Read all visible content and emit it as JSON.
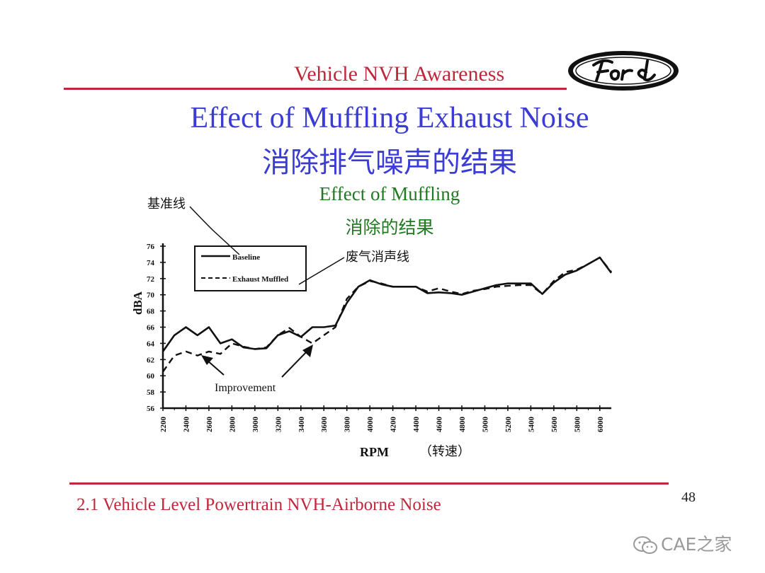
{
  "header": {
    "title": "Vehicle NVH Awareness",
    "logo_text": "Ford"
  },
  "slide": {
    "title": "Effect of Muffling Exhaust Noise",
    "title_cn": "消除排气噪声的结果"
  },
  "chart_data": {
    "type": "line",
    "title": "Effect of Muffling",
    "subtitle": "消除的结果",
    "xlabel": "RPM",
    "xlabel_cn": "（转速）",
    "ylabel": "dBA",
    "xlim": [
      2200,
      6100
    ],
    "ylim": [
      56,
      76
    ],
    "x_ticks": [
      "2200",
      "2400",
      "2600",
      "2800",
      "3000",
      "3200",
      "3400",
      "3600",
      "3800",
      "4000",
      "4200",
      "4400",
      "4600",
      "4800",
      "5000",
      "5200",
      "5400",
      "5600",
      "5800",
      "6000"
    ],
    "y_ticks": [
      "56",
      "58",
      "60",
      "62",
      "64",
      "66",
      "68",
      "70",
      "72",
      "74",
      "76"
    ],
    "legend": {
      "position": "top-left",
      "entries": [
        "Baseline",
        "Exhaust Muffled"
      ]
    },
    "series": [
      {
        "name": "Baseline",
        "style": "solid",
        "x": [
          2200,
          2300,
          2400,
          2500,
          2600,
          2700,
          2800,
          2900,
          3000,
          3100,
          3200,
          3300,
          3400,
          3500,
          3600,
          3700,
          3800,
          3900,
          4000,
          4100,
          4200,
          4300,
          4400,
          4500,
          4600,
          4700,
          4800,
          4900,
          5000,
          5100,
          5200,
          5300,
          5400,
          5500,
          5600,
          5700,
          5800,
          5900,
          6000,
          6100
        ],
        "y": [
          63,
          65,
          66,
          65,
          66,
          64,
          64.5,
          63.5,
          63.3,
          63.4,
          65,
          65.5,
          64.8,
          66,
          66,
          66.2,
          69,
          71,
          71.8,
          71.3,
          71,
          71,
          71,
          70.2,
          70.3,
          70.2,
          70,
          70.4,
          70.8,
          71.2,
          71.4,
          71.4,
          71.4,
          70.1,
          71.5,
          72.5,
          73,
          73.8,
          74.6,
          72.7
        ]
      },
      {
        "name": "Exhaust Muffled",
        "style": "dashed",
        "x": [
          2200,
          2300,
          2400,
          2500,
          2600,
          2700,
          2800,
          2900,
          3000,
          3100,
          3200,
          3300,
          3400,
          3500,
          3600,
          3700,
          3800,
          3900,
          4000,
          4100,
          4200,
          4300,
          4400,
          4500,
          4600,
          4700,
          4800,
          4900,
          5000,
          5100,
          5200,
          5300,
          5400,
          5500,
          5600,
          5700,
          5800,
          5900,
          6000,
          6100
        ],
        "y": [
          60.5,
          62.5,
          63,
          62.5,
          63,
          62.7,
          64,
          63.6,
          63.3,
          63.5,
          65,
          65.9,
          64.8,
          64,
          65,
          66,
          69.5,
          71,
          71.7,
          71.4,
          71,
          71,
          71,
          70.4,
          70.8,
          70.4,
          70.1,
          70.5,
          70.7,
          71,
          71.1,
          71.2,
          71.2,
          70.1,
          71.7,
          72.8,
          73.1,
          73.8,
          74.6,
          72.8
        ]
      }
    ],
    "annotations": [
      {
        "text": "基准线",
        "target": "Baseline"
      },
      {
        "text": "废气消声线",
        "target": "Exhaust Muffled"
      },
      {
        "text": "Improvement",
        "target": "gap between lines"
      }
    ]
  },
  "footer": {
    "text": "2.1 Vehicle Level Powertrain NVH-Airborne Noise",
    "page": "48"
  },
  "watermark": {
    "text": "CAE之家",
    "icon": "wechat-icon"
  },
  "colors": {
    "red": "#c0273a",
    "blue": "#3b3bd6",
    "green": "#1f7a1f"
  }
}
